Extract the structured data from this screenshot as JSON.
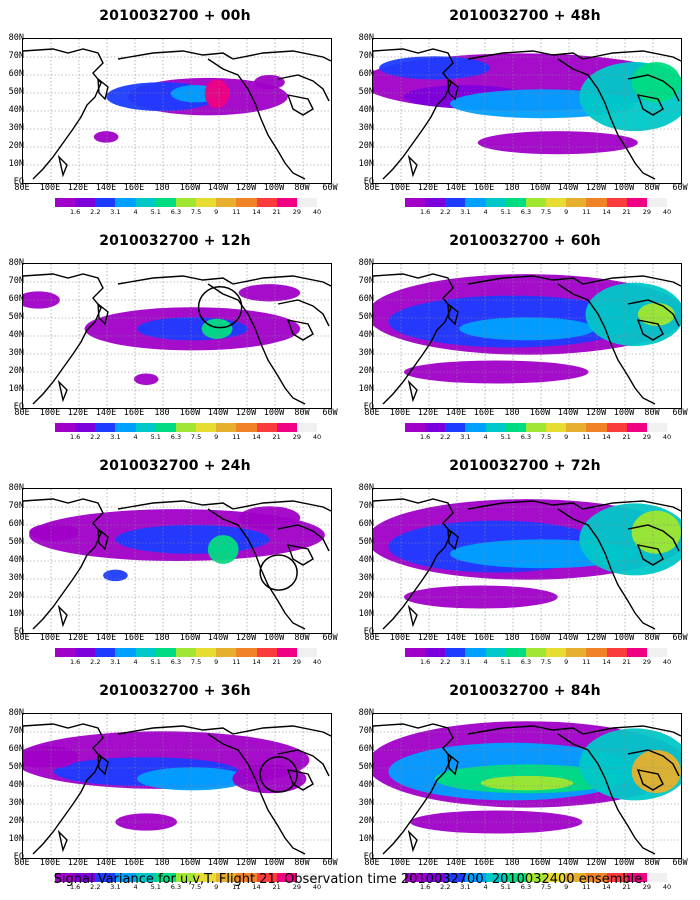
{
  "figure": {
    "caption": "Signal Variance for u,v,T. Flight 21. Observation time 2010032700. 2010032400 ensemble."
  },
  "axes": {
    "y_labels": [
      "80N",
      "70N",
      "60N",
      "50N",
      "40N",
      "30N",
      "20N",
      "10N",
      "EQ"
    ],
    "x_labels": [
      "80E",
      "100E",
      "120E",
      "140E",
      "160E",
      "180",
      "160W",
      "140W",
      "120W",
      "100W",
      "80W",
      "60W"
    ]
  },
  "colorbar": {
    "levels": [
      "1.6",
      "2.2",
      "3.1",
      "4",
      "5.1",
      "6.3",
      "7.5",
      "9",
      "11",
      "14",
      "21",
      "29",
      "40"
    ],
    "colors": [
      "#a000c8",
      "#7d00dc",
      "#1e3cff",
      "#00a0ff",
      "#00c8c8",
      "#00dc82",
      "#a0e632",
      "#e6dc32",
      "#e6af2d",
      "#f08228",
      "#fa3c3c",
      "#f00082",
      "#f0f0f0"
    ]
  },
  "panels": [
    {
      "title": "2010032700 + 00h"
    },
    {
      "title": "2010032700 + 48h"
    },
    {
      "title": "2010032700 + 12h"
    },
    {
      "title": "2010032700 + 60h"
    },
    {
      "title": "2010032700 + 24h"
    },
    {
      "title": "2010032700 + 72h"
    },
    {
      "title": "2010032700 + 36h"
    },
    {
      "title": "2010032700 + 84h"
    }
  ]
}
